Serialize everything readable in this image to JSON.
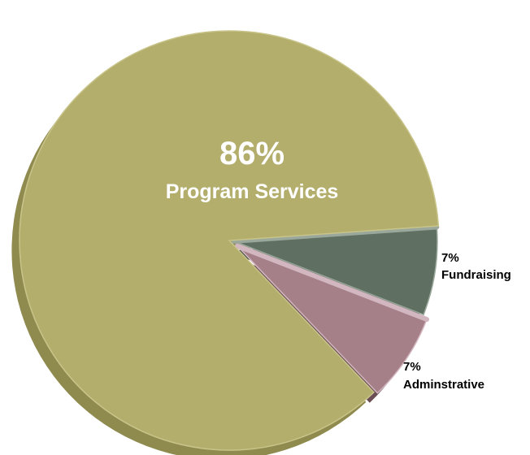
{
  "chart_data": {
    "type": "pie",
    "title": "",
    "slices": [
      {
        "label": "Program Services",
        "value": 86,
        "display": "86%",
        "color": "#b3ae6c",
        "side": "#8f8a4e",
        "edge": "#c8c48a"
      },
      {
        "label": "Fundraising",
        "value": 7,
        "display": "7%",
        "color": "#5f7062",
        "side": "#3f4c42",
        "edge": "#9aa79b"
      },
      {
        "label": "Adminstrative",
        "value": 7,
        "display": "7%",
        "color": "#a68089",
        "side": "#6b4e56",
        "edge": "#d3b7c0"
      }
    ]
  }
}
